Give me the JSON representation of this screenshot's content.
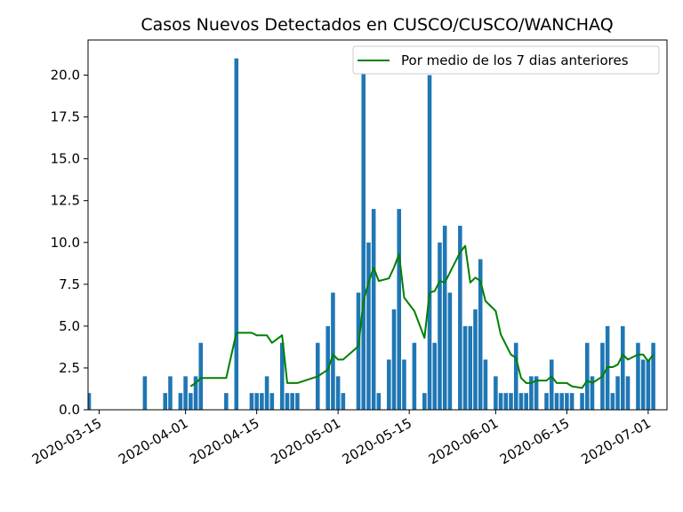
{
  "chart_data": {
    "type": "bar",
    "title": "Casos Nuevos Detectados en CUSCO/CUSCO/WANCHAQ",
    "xlabel": "",
    "ylabel": "",
    "bar_color": "#1f77b4",
    "line_color": "#008000",
    "ylim": [
      0,
      22.1
    ],
    "xlim": [
      "2020-03-13",
      "2020-07-02"
    ],
    "y_ticks": [
      0.0,
      2.5,
      5.0,
      7.5,
      10.0,
      12.5,
      15.0,
      17.5,
      20.0
    ],
    "y_tick_labels": [
      "0.0",
      "2.5",
      "5.0",
      "7.5",
      "10.0",
      "12.5",
      "15.0",
      "17.5",
      "20.0"
    ],
    "x_ticks": [
      "2020-03-15",
      "2020-04-01",
      "2020-04-15",
      "2020-05-01",
      "2020-05-15",
      "2020-06-01",
      "2020-06-15",
      "2020-07-01"
    ],
    "x_tick_labels": [
      "2020-03-15",
      "2020-04-01",
      "2020-04-15",
      "2020-05-01",
      "2020-05-15",
      "2020-06-01",
      "2020-06-15",
      "2020-07-01"
    ],
    "legend": {
      "position": "top-right",
      "entries": [
        "Por medio de los 7 dias anteriores"
      ]
    },
    "bars": [
      {
        "x": "2020-03-13",
        "y": 1
      },
      {
        "x": "2020-03-24",
        "y": 2
      },
      {
        "x": "2020-03-28",
        "y": 1
      },
      {
        "x": "2020-03-29",
        "y": 2
      },
      {
        "x": "2020-03-31",
        "y": 1
      },
      {
        "x": "2020-04-01",
        "y": 2
      },
      {
        "x": "2020-04-02",
        "y": 1
      },
      {
        "x": "2020-04-03",
        "y": 2
      },
      {
        "x": "2020-04-04",
        "y": 4
      },
      {
        "x": "2020-04-09",
        "y": 1
      },
      {
        "x": "2020-04-11",
        "y": 21
      },
      {
        "x": "2020-04-14",
        "y": 1
      },
      {
        "x": "2020-04-15",
        "y": 1
      },
      {
        "x": "2020-04-16",
        "y": 1
      },
      {
        "x": "2020-04-17",
        "y": 2
      },
      {
        "x": "2020-04-18",
        "y": 1
      },
      {
        "x": "2020-04-20",
        "y": 4
      },
      {
        "x": "2020-04-21",
        "y": 1
      },
      {
        "x": "2020-04-22",
        "y": 1
      },
      {
        "x": "2020-04-23",
        "y": 1
      },
      {
        "x": "2020-04-27",
        "y": 4
      },
      {
        "x": "2020-04-29",
        "y": 5
      },
      {
        "x": "2020-04-30",
        "y": 7
      },
      {
        "x": "2020-05-01",
        "y": 2
      },
      {
        "x": "2020-05-02",
        "y": 1
      },
      {
        "x": "2020-05-05",
        "y": 7
      },
      {
        "x": "2020-05-06",
        "y": 21
      },
      {
        "x": "2020-05-07",
        "y": 10
      },
      {
        "x": "2020-05-08",
        "y": 12
      },
      {
        "x": "2020-05-09",
        "y": 1
      },
      {
        "x": "2020-05-11",
        "y": 3
      },
      {
        "x": "2020-05-12",
        "y": 6
      },
      {
        "x": "2020-05-13",
        "y": 12
      },
      {
        "x": "2020-05-14",
        "y": 3
      },
      {
        "x": "2020-05-16",
        "y": 4
      },
      {
        "x": "2020-05-18",
        "y": 1
      },
      {
        "x": "2020-05-19",
        "y": 20
      },
      {
        "x": "2020-05-20",
        "y": 4
      },
      {
        "x": "2020-05-21",
        "y": 10
      },
      {
        "x": "2020-05-22",
        "y": 11
      },
      {
        "x": "2020-05-23",
        "y": 7
      },
      {
        "x": "2020-05-25",
        "y": 11
      },
      {
        "x": "2020-05-26",
        "y": 5
      },
      {
        "x": "2020-05-27",
        "y": 5
      },
      {
        "x": "2020-05-28",
        "y": 6
      },
      {
        "x": "2020-05-29",
        "y": 9
      },
      {
        "x": "2020-05-30",
        "y": 3
      },
      {
        "x": "2020-06-01",
        "y": 2
      },
      {
        "x": "2020-06-02",
        "y": 1
      },
      {
        "x": "2020-06-03",
        "y": 1
      },
      {
        "x": "2020-06-04",
        "y": 1
      },
      {
        "x": "2020-06-05",
        "y": 4
      },
      {
        "x": "2020-06-06",
        "y": 1
      },
      {
        "x": "2020-06-07",
        "y": 1
      },
      {
        "x": "2020-06-08",
        "y": 2
      },
      {
        "x": "2020-06-09",
        "y": 2
      },
      {
        "x": "2020-06-11",
        "y": 1
      },
      {
        "x": "2020-06-12",
        "y": 3
      },
      {
        "x": "2020-06-13",
        "y": 1
      },
      {
        "x": "2020-06-14",
        "y": 1
      },
      {
        "x": "2020-06-15",
        "y": 1
      },
      {
        "x": "2020-06-16",
        "y": 1
      },
      {
        "x": "2020-06-18",
        "y": 1
      },
      {
        "x": "2020-06-19",
        "y": 4
      },
      {
        "x": "2020-06-20",
        "y": 2
      },
      {
        "x": "2020-06-22",
        "y": 4
      },
      {
        "x": "2020-06-23",
        "y": 5
      },
      {
        "x": "2020-06-24",
        "y": 1
      },
      {
        "x": "2020-06-25",
        "y": 2
      },
      {
        "x": "2020-06-26",
        "y": 5
      },
      {
        "x": "2020-06-27",
        "y": 2
      },
      {
        "x": "2020-06-29",
        "y": 4
      },
      {
        "x": "2020-06-30",
        "y": 3
      },
      {
        "x": "2020-07-01",
        "y": 3
      },
      {
        "x": "2020-07-02",
        "y": 4
      }
    ],
    "series": [
      {
        "name": "Por medio de los 7 dias anteriores",
        "points": [
          {
            "x": "2020-04-02",
            "y": 1.4
          },
          {
            "x": "2020-04-03",
            "y": 1.6
          },
          {
            "x": "2020-04-04",
            "y": 1.9
          },
          {
            "x": "2020-04-09",
            "y": 1.9
          },
          {
            "x": "2020-04-11",
            "y": 4.6
          },
          {
            "x": "2020-04-14",
            "y": 4.6
          },
          {
            "x": "2020-04-15",
            "y": 4.45
          },
          {
            "x": "2020-04-17",
            "y": 4.45
          },
          {
            "x": "2020-04-18",
            "y": 4.0
          },
          {
            "x": "2020-04-20",
            "y": 4.45
          },
          {
            "x": "2020-04-21",
            "y": 1.6
          },
          {
            "x": "2020-04-23",
            "y": 1.6
          },
          {
            "x": "2020-04-27",
            "y": 2.0
          },
          {
            "x": "2020-04-29",
            "y": 2.4
          },
          {
            "x": "2020-04-30",
            "y": 3.3
          },
          {
            "x": "2020-05-01",
            "y": 3.0
          },
          {
            "x": "2020-05-02",
            "y": 3.0
          },
          {
            "x": "2020-05-05",
            "y": 3.8
          },
          {
            "x": "2020-05-06",
            "y": 6.5
          },
          {
            "x": "2020-05-07",
            "y": 7.6
          },
          {
            "x": "2020-05-08",
            "y": 8.5
          },
          {
            "x": "2020-05-09",
            "y": 7.7
          },
          {
            "x": "2020-05-11",
            "y": 7.85
          },
          {
            "x": "2020-05-12",
            "y": 8.5
          },
          {
            "x": "2020-05-13",
            "y": 9.3
          },
          {
            "x": "2020-05-14",
            "y": 6.7
          },
          {
            "x": "2020-05-16",
            "y": 5.9
          },
          {
            "x": "2020-05-18",
            "y": 4.3
          },
          {
            "x": "2020-05-19",
            "y": 7.0
          },
          {
            "x": "2020-05-20",
            "y": 7.1
          },
          {
            "x": "2020-05-21",
            "y": 7.7
          },
          {
            "x": "2020-05-22",
            "y": 7.6
          },
          {
            "x": "2020-05-23",
            "y": 8.2
          },
          {
            "x": "2020-05-25",
            "y": 9.4
          },
          {
            "x": "2020-05-26",
            "y": 9.8
          },
          {
            "x": "2020-05-27",
            "y": 7.6
          },
          {
            "x": "2020-05-28",
            "y": 7.9
          },
          {
            "x": "2020-05-29",
            "y": 7.7
          },
          {
            "x": "2020-05-30",
            "y": 6.5
          },
          {
            "x": "2020-06-01",
            "y": 5.9
          },
          {
            "x": "2020-06-02",
            "y": 4.5
          },
          {
            "x": "2020-06-03",
            "y": 3.9
          },
          {
            "x": "2020-06-04",
            "y": 3.3
          },
          {
            "x": "2020-06-05",
            "y": 3.1
          },
          {
            "x": "2020-06-06",
            "y": 1.9
          },
          {
            "x": "2020-06-07",
            "y": 1.6
          },
          {
            "x": "2020-06-08",
            "y": 1.6
          },
          {
            "x": "2020-06-09",
            "y": 1.75
          },
          {
            "x": "2020-06-11",
            "y": 1.75
          },
          {
            "x": "2020-06-12",
            "y": 2.0
          },
          {
            "x": "2020-06-13",
            "y": 1.6
          },
          {
            "x": "2020-06-15",
            "y": 1.6
          },
          {
            "x": "2020-06-16",
            "y": 1.4
          },
          {
            "x": "2020-06-18",
            "y": 1.3
          },
          {
            "x": "2020-06-19",
            "y": 1.75
          },
          {
            "x": "2020-06-20",
            "y": 1.6
          },
          {
            "x": "2020-06-22",
            "y": 2.0
          },
          {
            "x": "2020-06-23",
            "y": 2.55
          },
          {
            "x": "2020-06-24",
            "y": 2.55
          },
          {
            "x": "2020-06-25",
            "y": 2.7
          },
          {
            "x": "2020-06-26",
            "y": 3.3
          },
          {
            "x": "2020-06-27",
            "y": 3.0
          },
          {
            "x": "2020-06-29",
            "y": 3.3
          },
          {
            "x": "2020-06-30",
            "y": 3.3
          },
          {
            "x": "2020-07-01",
            "y": 2.9
          },
          {
            "x": "2020-07-02",
            "y": 3.3
          }
        ]
      }
    ]
  }
}
